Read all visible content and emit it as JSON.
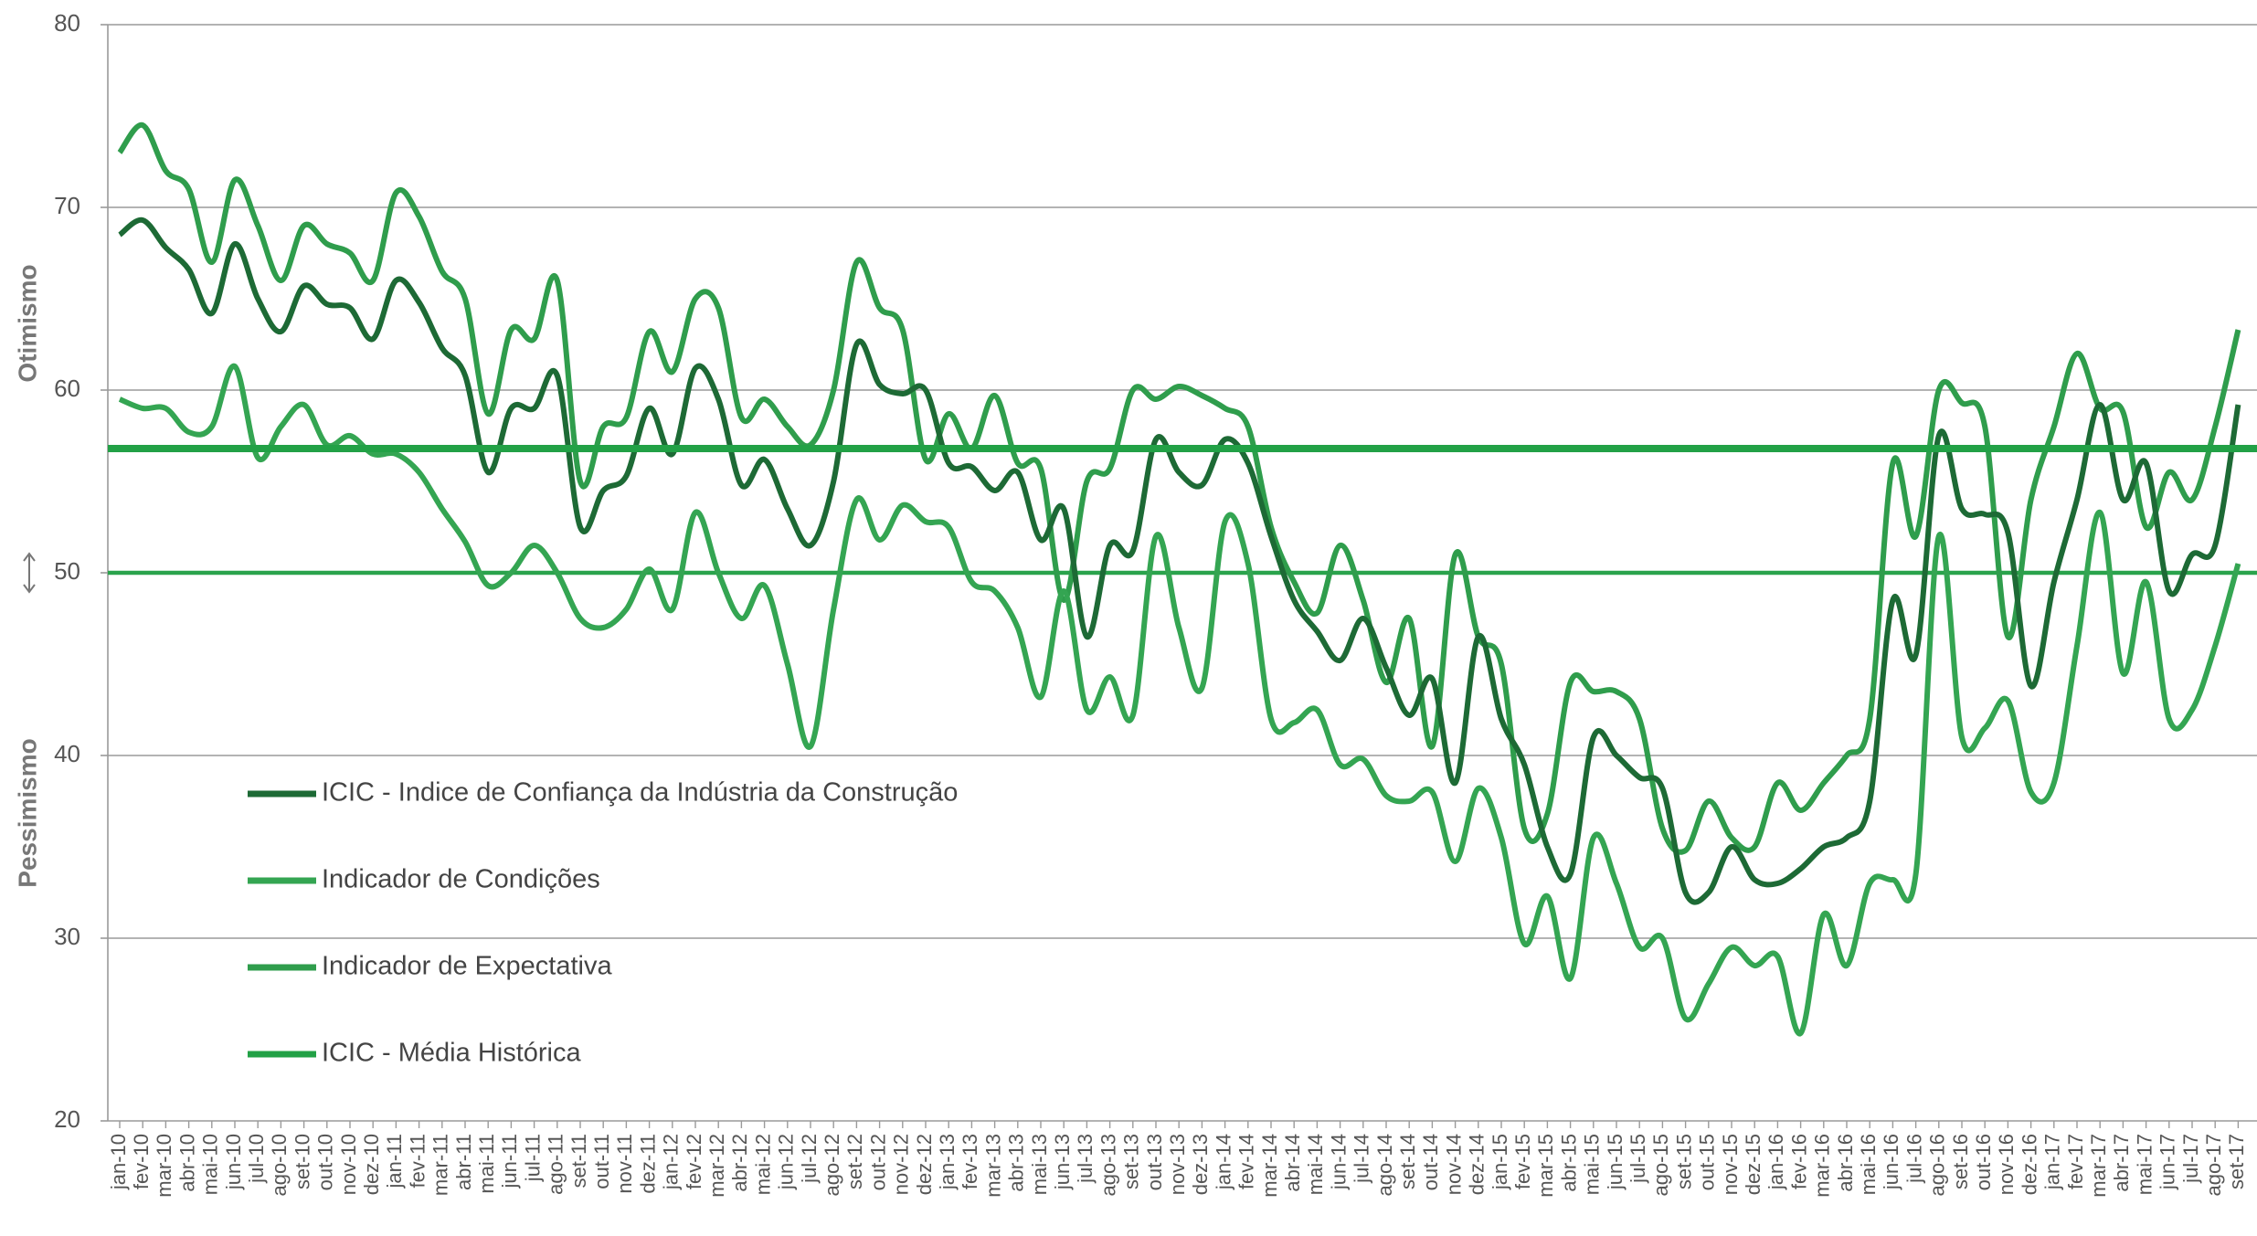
{
  "chart_data": {
    "type": "line",
    "y_axis_labels": {
      "top": "Otimismo",
      "bottom": "Pessimismo"
    },
    "categories": [
      "jan-10",
      "fev-10",
      "mar-10",
      "abr-10",
      "mai-10",
      "jun-10",
      "jul-10",
      "ago-10",
      "set-10",
      "out-10",
      "nov-10",
      "dez-10",
      "jan-11",
      "fev-11",
      "mar-11",
      "abr-11",
      "mai-11",
      "jun-11",
      "jul-11",
      "ago-11",
      "set-11",
      "out-11",
      "nov-11",
      "dez-11",
      "jan-12",
      "fev-12",
      "mar-12",
      "abr-12",
      "mai-12",
      "jun-12",
      "jul-12",
      "ago-12",
      "set-12",
      "out-12",
      "nov-12",
      "dez-12",
      "jan-13",
      "fev-13",
      "mar-13",
      "abr-13",
      "mai-13",
      "jun-13",
      "jul-13",
      "ago-13",
      "set-13",
      "out-13",
      "nov-13",
      "dez-13",
      "jan-14",
      "fev-14",
      "mar-14",
      "abr-14",
      "mai-14",
      "jun-14",
      "jul-14",
      "ago-14",
      "set-14",
      "out-14",
      "nov-14",
      "dez-14",
      "jan-15",
      "fev-15",
      "mar-15",
      "abr-15",
      "mai-15",
      "jun-15",
      "jul-15",
      "ago-15",
      "set-15",
      "out-15",
      "nov-15",
      "dez-15",
      "jan-16",
      "fev-16",
      "mar-16",
      "abr-16",
      "mai-16",
      "jun-16",
      "jul-16",
      "ago-16",
      "set-16",
      "out-16",
      "nov-16",
      "dez-16",
      "jan-17",
      "fev-17",
      "mar-17",
      "abr-17",
      "mai-17",
      "jun-17",
      "jul-17",
      "ago-17",
      "set-17"
    ],
    "series": [
      {
        "name": "ICIC - Indice de Confiança da Indústria da Construção",
        "color": "#1d6a35",
        "values": [
          68.5,
          69.3,
          67.8,
          66.6,
          64.2,
          68.0,
          65.0,
          63.2,
          65.7,
          64.7,
          64.5,
          62.8,
          66.0,
          64.8,
          62.3,
          60.8,
          55.5,
          59.0,
          59.0,
          60.8,
          52.5,
          54.5,
          55.3,
          59.0,
          56.5,
          61.2,
          59.5,
          54.8,
          56.2,
          53.5,
          51.5,
          55.0,
          62.5,
          60.3,
          59.8,
          60.0,
          56.0,
          55.8,
          54.5,
          55.5,
          51.8,
          53.5,
          46.5,
          51.5,
          51.2,
          57.3,
          55.5,
          54.8,
          57.3,
          56.0,
          52.0,
          48.5,
          46.8,
          45.2,
          47.5,
          44.8,
          42.2,
          44.2,
          38.5,
          46.5,
          42.0,
          39.5,
          35.0,
          33.5,
          41.0,
          40.0,
          38.8,
          38.2,
          32.5,
          32.5,
          35.0,
          33.2,
          33.0,
          33.8,
          35.0,
          35.5,
          37.5,
          48.5,
          45.5,
          57.5,
          53.5,
          53.2,
          52.2,
          43.8,
          49.5,
          54.0,
          59.2,
          54.0,
          56.0,
          49.0,
          51.0,
          51.5,
          59.2
        ]
      },
      {
        "name": "Indicador de Condições",
        "color": "#34a552",
        "values": [
          59.5,
          59.0,
          59.0,
          57.7,
          58.0,
          61.3,
          56.3,
          58.0,
          59.2,
          57.0,
          57.5,
          56.5,
          56.5,
          55.5,
          53.5,
          51.7,
          49.3,
          50.0,
          51.5,
          50.0,
          47.5,
          47.0,
          48.0,
          50.2,
          48.0,
          53.3,
          50.0,
          47.5,
          49.3,
          45.0,
          40.5,
          48.0,
          54.0,
          51.8,
          53.7,
          52.8,
          52.5,
          49.5,
          49.0,
          47.0,
          43.2,
          49.0,
          42.5,
          44.3,
          42.2,
          52.0,
          47.0,
          43.7,
          52.8,
          50.5,
          42.0,
          41.8,
          42.5,
          39.5,
          39.8,
          37.8,
          37.5,
          38.0,
          34.2,
          38.2,
          35.5,
          29.7,
          32.3,
          27.8,
          35.5,
          33.0,
          29.5,
          30.0,
          25.6,
          27.5,
          29.5,
          28.5,
          29.0,
          24.8,
          31.3,
          28.5,
          33.0,
          33.2,
          33.5,
          52.0,
          41.0,
          41.5,
          43.0,
          38.0,
          38.5,
          46.0,
          53.3,
          44.5,
          49.5,
          42.0,
          42.5,
          46.0,
          50.5
        ]
      },
      {
        "name": "Indicador de Expectativa",
        "color": "#2f9d4c",
        "values": [
          73.0,
          74.5,
          72.0,
          71.0,
          67.0,
          71.5,
          69.0,
          66.0,
          69.0,
          68.0,
          67.5,
          66.0,
          70.8,
          69.5,
          66.5,
          65.0,
          58.7,
          63.3,
          62.8,
          66.0,
          55.0,
          58.0,
          58.5,
          63.2,
          61.0,
          65.0,
          64.5,
          58.5,
          59.5,
          58.0,
          57.0,
          60.0,
          67.0,
          64.5,
          63.3,
          56.2,
          58.7,
          56.8,
          59.7,
          56.0,
          55.7,
          48.5,
          55.0,
          55.7,
          60.0,
          59.5,
          60.2,
          59.7,
          59.0,
          58.0,
          52.5,
          49.5,
          47.8,
          51.5,
          48.5,
          44.0,
          47.5,
          40.5,
          51.0,
          46.5,
          45.0,
          36.0,
          36.8,
          44.0,
          43.5,
          43.5,
          42.0,
          36.0,
          34.8,
          37.5,
          35.5,
          35.0,
          38.5,
          37.0,
          38.5,
          40.0,
          42.0,
          56.0,
          52.0,
          60.0,
          59.3,
          58.0,
          46.5,
          54.0,
          58.0,
          62.0,
          59.0,
          58.8,
          52.5,
          55.5,
          54.0,
          58.0,
          63.3
        ]
      }
    ],
    "reference_line": {
      "name": "ICIC - Média Histórica",
      "color": "#22a146",
      "value": 56.8
    },
    "neutral_line": {
      "color": "#2aa34c",
      "value": 50
    },
    "ylim": [
      20,
      80
    ],
    "yticks": [
      20,
      30,
      40,
      50,
      60,
      70,
      80
    ],
    "grid": true
  }
}
